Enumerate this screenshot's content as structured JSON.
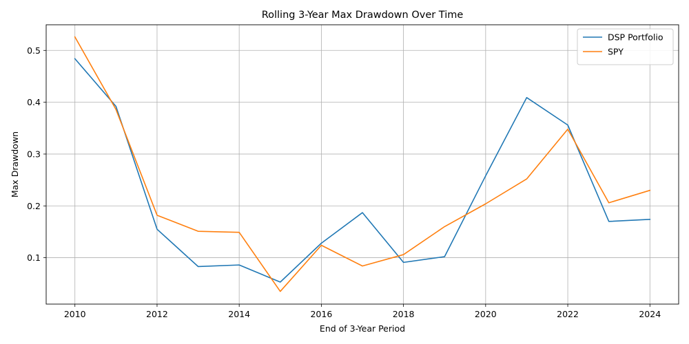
{
  "chart_data": {
    "type": "line",
    "title": "Rolling 3-Year Max Drawdown Over Time",
    "xlabel": "End of 3-Year Period",
    "ylabel": "Max Drawdown",
    "x": [
      2010,
      2011,
      2012,
      2013,
      2014,
      2015,
      2016,
      2017,
      2018,
      2019,
      2020,
      2021,
      2022,
      2023,
      2024
    ],
    "xlim": [
      2009.3,
      2024.7
    ],
    "ylim": [
      0.0105,
      0.5495
    ],
    "xticks": [
      2010,
      2012,
      2014,
      2016,
      2018,
      2020,
      2022,
      2024
    ],
    "xtick_labels": [
      "2010",
      "2012",
      "2014",
      "2016",
      "2018",
      "2020",
      "2022",
      "2024"
    ],
    "yticks": [
      0.1,
      0.2,
      0.3,
      0.4,
      0.5
    ],
    "ytick_labels": [
      "0.1",
      "0.2",
      "0.3",
      "0.4",
      "0.5"
    ],
    "grid": true,
    "legend_position": "top-right",
    "series": [
      {
        "name": "DSP Portfolio",
        "color": "#1f77b4",
        "values": [
          0.484,
          0.392,
          0.155,
          0.083,
          0.086,
          0.053,
          0.128,
          0.187,
          0.091,
          0.102,
          0.258,
          0.409,
          0.356,
          0.17,
          0.174
        ]
      },
      {
        "name": "SPY",
        "color": "#ff7f0e",
        "values": [
          0.526,
          0.386,
          0.182,
          0.151,
          0.149,
          0.035,
          0.124,
          0.084,
          0.106,
          0.16,
          0.204,
          0.252,
          0.348,
          0.206,
          0.23
        ]
      }
    ]
  }
}
